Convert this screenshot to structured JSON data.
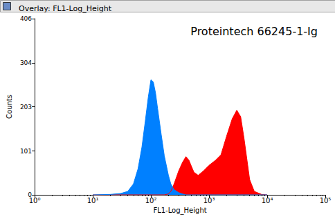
{
  "chart_data": {
    "type": "area",
    "title": "Overlay: FL1-Log_Height",
    "annotation": "Proteintech 66245-1-Ig",
    "x_label": "FL1-Log_Height",
    "y_label": "Counts",
    "log": "x",
    "grid": false,
    "xlim": [
      1,
      100000
    ],
    "xticks": [
      {
        "value": 1,
        "label": "10⁰"
      },
      {
        "value": 10,
        "label": "10¹"
      },
      {
        "value": 100,
        "label": "10²"
      },
      {
        "value": 1000,
        "label": "10³"
      },
      {
        "value": 10000,
        "label": "10⁴"
      },
      {
        "value": 100000,
        "label": "10⁵"
      }
    ],
    "ylim": [
      0,
      406
    ],
    "yticks": [
      0,
      101,
      203,
      304,
      406
    ],
    "x": [
      10,
      20,
      30,
      40,
      50,
      60,
      70,
      80,
      90,
      100,
      110,
      120,
      130,
      150,
      170,
      200,
      220,
      250,
      300,
      350,
      400,
      450,
      500,
      550,
      650,
      800,
      1000,
      1300,
      1600,
      2000,
      2500,
      3000,
      3500,
      4000,
      5000,
      6000,
      8000,
      10000
    ],
    "series": [
      {
        "color": "#ff0000",
        "values": [
          0,
          0,
          0,
          0,
          0,
          0,
          0,
          0,
          0,
          0,
          0,
          0,
          0,
          0,
          0,
          2,
          8,
          25,
          55,
          75,
          88,
          80,
          65,
          52,
          45,
          55,
          68,
          80,
          92,
          135,
          175,
          195,
          180,
          130,
          35,
          8,
          1,
          0
        ]
      },
      {
        "color": "#0080ff",
        "values": [
          0,
          1,
          3,
          8,
          25,
          60,
          110,
          170,
          225,
          265,
          260,
          235,
          200,
          140,
          90,
          45,
          25,
          12,
          5,
          2,
          0,
          0,
          0,
          0,
          0,
          0,
          0,
          0,
          0,
          0,
          0,
          0,
          0,
          0,
          0,
          0,
          0,
          0
        ]
      }
    ]
  }
}
